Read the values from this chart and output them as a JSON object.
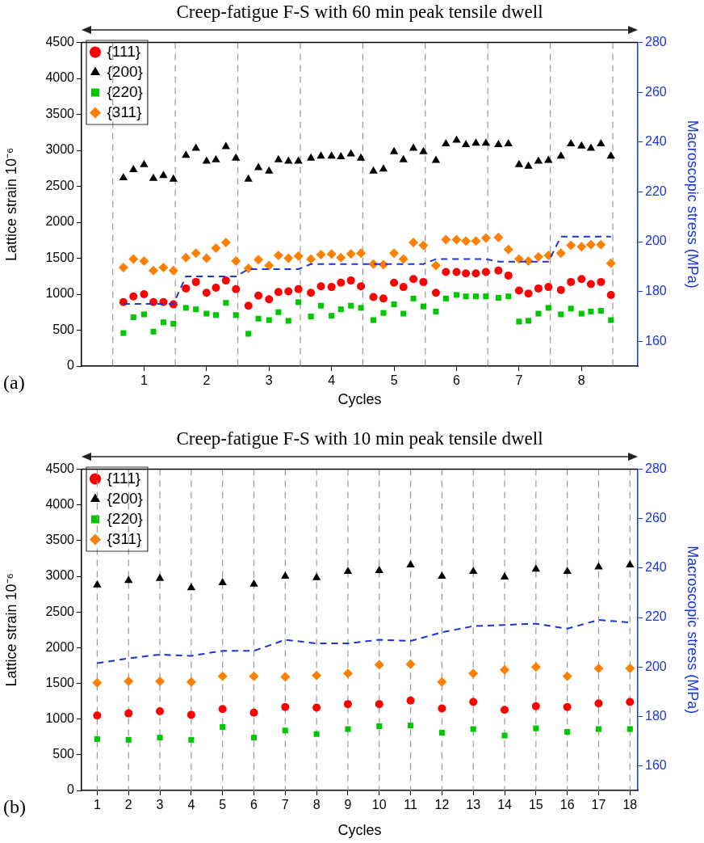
{
  "chart_data": [
    {
      "type": "scatter",
      "title": "Creep-fatigue F-S with 60 min peak tensile dwell",
      "xlabel": "Cycles",
      "ylabel": "Lattice strain 10⁻⁶",
      "y2label": "Macroscopic stress (MPa)",
      "annotations": [
        "(a)"
      ],
      "legend": "top left",
      "x": [
        0.67,
        0.83,
        1,
        1.15,
        1.31,
        1.47,
        1.67,
        1.83,
        2,
        2.15,
        2.31,
        2.47,
        2.67,
        2.83,
        3,
        3.15,
        3.31,
        3.47,
        3.67,
        3.83,
        4,
        4.15,
        4.31,
        4.47,
        4.67,
        4.83,
        5,
        5.15,
        5.31,
        5.47,
        5.67,
        5.83,
        6,
        6.15,
        6.31,
        6.47,
        6.67,
        6.83,
        7,
        7.15,
        7.31,
        7.47,
        7.67,
        7.83,
        8,
        8.15,
        8.31,
        8.47
      ],
      "series": [
        {
          "name": "{111}",
          "color": "#ff0000",
          "marker": "circle",
          "values": [
            890,
            970,
            1000,
            890,
            890,
            860,
            1080,
            1170,
            1020,
            1090,
            1190,
            1070,
            840,
            980,
            930,
            1030,
            1040,
            1070,
            1020,
            1110,
            1100,
            1160,
            1190,
            1110,
            960,
            940,
            1160,
            1100,
            1210,
            1170,
            1020,
            1310,
            1310,
            1290,
            1290,
            1310,
            1330,
            1260,
            1050,
            1010,
            1080,
            1100,
            1060,
            1170,
            1210,
            1140,
            1170,
            990
          ]
        },
        {
          "name": "{200}",
          "color": "#000000",
          "marker": "triangle",
          "values": [
            2620,
            2730,
            2800,
            2610,
            2650,
            2600,
            2930,
            3030,
            2850,
            2870,
            3050,
            2890,
            2600,
            2760,
            2710,
            2870,
            2850,
            2850,
            2890,
            2920,
            2920,
            2910,
            2950,
            2890,
            2710,
            2740,
            2980,
            2870,
            3030,
            2980,
            2860,
            3090,
            3140,
            3080,
            3100,
            3100,
            3080,
            3090,
            2800,
            2780,
            2850,
            2860,
            2920,
            3090,
            3060,
            3030,
            3090,
            2920
          ]
        },
        {
          "name": "{220}",
          "color": "#00c800",
          "marker": "square",
          "values": [
            460,
            680,
            720,
            480,
            610,
            590,
            810,
            790,
            730,
            710,
            880,
            710,
            450,
            660,
            640,
            750,
            630,
            890,
            690,
            840,
            700,
            790,
            840,
            810,
            640,
            740,
            860,
            730,
            940,
            830,
            760,
            940,
            990,
            970,
            970,
            970,
            950,
            970,
            620,
            630,
            730,
            810,
            720,
            800,
            730,
            760,
            770,
            640
          ]
        },
        {
          "name": "{311}",
          "color": "#ff8000",
          "marker": "diamond",
          "values": [
            1370,
            1490,
            1460,
            1330,
            1370,
            1330,
            1510,
            1570,
            1500,
            1640,
            1720,
            1460,
            1360,
            1480,
            1400,
            1540,
            1500,
            1530,
            1490,
            1550,
            1560,
            1510,
            1560,
            1570,
            1420,
            1410,
            1570,
            1490,
            1720,
            1680,
            1400,
            1760,
            1760,
            1740,
            1740,
            1780,
            1790,
            1620,
            1490,
            1460,
            1520,
            1540,
            1570,
            1680,
            1660,
            1690,
            1690,
            1430
          ]
        },
        {
          "type": "line",
          "axis": "y2",
          "color": "#1a35d6",
          "marker": "none",
          "line_style": "dashed",
          "x": [
            0.67,
            1.47,
            1.67,
            2.47,
            2.67,
            3.47,
            3.67,
            4.47,
            4.67,
            5.47,
            5.67,
            6.47,
            6.67,
            7.47,
            7.67,
            8.47
          ],
          "values": [
            175,
            175,
            186,
            186,
            189,
            189,
            191,
            191,
            191,
            191,
            193,
            193,
            192,
            192,
            202,
            202
          ]
        }
      ],
      "xlim": [
        0,
        8.9
      ],
      "xticks": [
        1,
        2,
        3,
        4,
        5,
        6,
        7,
        8
      ],
      "ylim": [
        0,
        4500
      ],
      "yticks": [
        0,
        500,
        1000,
        1500,
        2000,
        2500,
        3000,
        3500,
        4000,
        4500
      ],
      "y2lim": [
        150,
        280
      ],
      "y2ticks": [
        160,
        180,
        200,
        220,
        240,
        260,
        280
      ],
      "ref_lines": [
        {
          "axis": "x",
          "value": 0.5,
          "color": "#999999",
          "line_style": "dashed"
        },
        {
          "axis": "x",
          "value": 1.5,
          "color": "#999999",
          "line_style": "dashed"
        },
        {
          "axis": "x",
          "value": 2.5,
          "color": "#999999",
          "line_style": "dashed"
        },
        {
          "axis": "x",
          "value": 3.5,
          "color": "#999999",
          "line_style": "dashed"
        },
        {
          "axis": "x",
          "value": 4.5,
          "color": "#999999",
          "line_style": "dashed"
        },
        {
          "axis": "x",
          "value": 5.5,
          "color": "#999999",
          "line_style": "dashed"
        },
        {
          "axis": "x",
          "value": 6.5,
          "color": "#999999",
          "line_style": "dashed"
        },
        {
          "axis": "x",
          "value": 7.5,
          "color": "#999999",
          "line_style": "dashed"
        },
        {
          "axis": "x",
          "value": 8.5,
          "color": "#999999",
          "line_style": "dashed"
        }
      ]
    },
    {
      "type": "scatter",
      "title": "Creep-fatigue F-S with 10 min peak tensile dwell",
      "xlabel": "Cycles",
      "ylabel": "Lattice strain 10⁻⁶",
      "y2label": "Macroscopic stress (MPa)",
      "annotations": [
        "(b)"
      ],
      "legend": "top left",
      "x": [
        1,
        2,
        3,
        4,
        5,
        6,
        7,
        8,
        9,
        10,
        11,
        12,
        13,
        14,
        15,
        16,
        17,
        18
      ],
      "series": [
        {
          "name": "{111}",
          "color": "#ff0000",
          "marker": "circle",
          "values": [
            1050,
            1080,
            1110,
            1060,
            1140,
            1090,
            1170,
            1160,
            1210,
            1210,
            1260,
            1150,
            1240,
            1130,
            1180,
            1170,
            1220,
            1240
          ]
        },
        {
          "name": "{200}",
          "color": "#000000",
          "marker": "triangle",
          "values": [
            2880,
            2940,
            2970,
            2840,
            2910,
            2890,
            3000,
            2980,
            3070,
            3080,
            3160,
            3000,
            3070,
            2990,
            3100,
            3070,
            3130,
            3160
          ]
        },
        {
          "name": "{220}",
          "color": "#00c800",
          "marker": "square",
          "values": [
            720,
            710,
            740,
            710,
            890,
            740,
            840,
            790,
            860,
            900,
            910,
            810,
            860,
            770,
            870,
            820,
            860,
            860
          ]
        },
        {
          "name": "{311}",
          "color": "#ff8000",
          "marker": "diamond",
          "values": [
            1510,
            1530,
            1530,
            1520,
            1600,
            1600,
            1590,
            1610,
            1640,
            1760,
            1770,
            1520,
            1640,
            1690,
            1730,
            1600,
            1710,
            1710
          ]
        },
        {
          "type": "line",
          "axis": "y2",
          "color": "#1a35d6",
          "marker": "none",
          "line_style": "dashed",
          "x": [
            1,
            2,
            3,
            4,
            5,
            6,
            7,
            8,
            9,
            10,
            11,
            12,
            13,
            14,
            15,
            16,
            17,
            18
          ],
          "values": [
            201.5,
            203.5,
            205,
            204.5,
            206.5,
            206.5,
            211,
            209.5,
            209.5,
            211,
            210.5,
            214,
            216.5,
            217,
            217.5,
            215.5,
            219,
            218
          ]
        }
      ],
      "xlim": [
        0.5,
        18.25
      ],
      "xticks": [
        1,
        2,
        3,
        4,
        5,
        6,
        7,
        8,
        9,
        10,
        11,
        12,
        13,
        14,
        15,
        16,
        17,
        18
      ],
      "ylim": [
        0,
        4500
      ],
      "yticks": [
        0,
        500,
        1000,
        1500,
        2000,
        2500,
        3000,
        3500,
        4000,
        4500
      ],
      "y2lim": [
        150,
        280
      ],
      "y2ticks": [
        160,
        180,
        200,
        220,
        240,
        260,
        280
      ],
      "ref_lines": [
        {
          "axis": "x",
          "value": 1,
          "color": "#999999",
          "line_style": "dashed"
        },
        {
          "axis": "x",
          "value": 2,
          "color": "#999999",
          "line_style": "dashed"
        },
        {
          "axis": "x",
          "value": 3,
          "color": "#999999",
          "line_style": "dashed"
        },
        {
          "axis": "x",
          "value": 4,
          "color": "#999999",
          "line_style": "dashed"
        },
        {
          "axis": "x",
          "value": 5,
          "color": "#999999",
          "line_style": "dashed"
        },
        {
          "axis": "x",
          "value": 6,
          "color": "#999999",
          "line_style": "dashed"
        },
        {
          "axis": "x",
          "value": 7,
          "color": "#999999",
          "line_style": "dashed"
        },
        {
          "axis": "x",
          "value": 8,
          "color": "#999999",
          "line_style": "dashed"
        },
        {
          "axis": "x",
          "value": 9,
          "color": "#999999",
          "line_style": "dashed"
        },
        {
          "axis": "x",
          "value": 10,
          "color": "#999999",
          "line_style": "dashed"
        },
        {
          "axis": "x",
          "value": 11,
          "color": "#999999",
          "line_style": "dashed"
        },
        {
          "axis": "x",
          "value": 12,
          "color": "#999999",
          "line_style": "dashed"
        },
        {
          "axis": "x",
          "value": 13,
          "color": "#999999",
          "line_style": "dashed"
        },
        {
          "axis": "x",
          "value": 14,
          "color": "#999999",
          "line_style": "dashed"
        },
        {
          "axis": "x",
          "value": 15,
          "color": "#999999",
          "line_style": "dashed"
        },
        {
          "axis": "x",
          "value": 16,
          "color": "#999999",
          "line_style": "dashed"
        },
        {
          "axis": "x",
          "value": 17,
          "color": "#999999",
          "line_style": "dashed"
        },
        {
          "axis": "x",
          "value": 18,
          "color": "#999999",
          "line_style": "dashed"
        }
      ]
    }
  ]
}
